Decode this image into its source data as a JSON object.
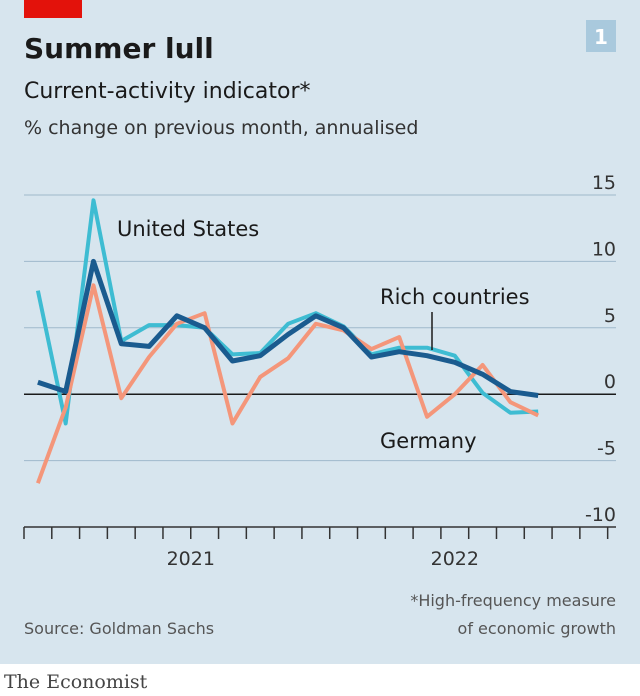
{
  "chart_data": {
    "type": "line",
    "title": "Summer lull",
    "badge": "1",
    "subtitle": "Current-activity indicator*",
    "unit_label": "% change on previous month, annualised",
    "x": [
      0,
      1,
      2,
      3,
      4,
      5,
      6,
      7,
      8,
      9,
      10,
      11,
      12,
      13,
      14,
      15,
      16,
      17,
      18
    ],
    "xlim": [
      -0.5,
      20.8
    ],
    "xticks": [
      -0.5,
      0.5,
      1.5,
      2.5,
      3.5,
      4.5,
      5.5,
      6.5,
      7.5,
      8.5,
      9.5,
      10.5,
      11.5,
      12.5,
      13.5,
      14.5,
      15.5,
      16.5,
      17.5,
      18.5,
      19.5,
      20.5
    ],
    "xlabels": [
      {
        "value": 5.5,
        "label": "2021"
      },
      {
        "value": 15,
        "label": "2022"
      }
    ],
    "ylim": [
      -10,
      15
    ],
    "yticks": [
      -10,
      -5,
      0,
      5,
      10,
      15
    ],
    "grid": true,
    "series": [
      {
        "name": "United States",
        "color": "#3ebcd2",
        "values": [
          7.8,
          -2.2,
          14.6,
          4,
          5.2,
          5.2,
          5,
          3,
          3.1,
          5.3,
          6.1,
          5.1,
          3,
          3.5,
          3.5,
          2.9,
          0.1,
          -1.4,
          -1.3
        ]
      },
      {
        "name": "Germany",
        "color": "#f4967a",
        "values": [
          -6.7,
          -1,
          8.2,
          -0.3,
          2.8,
          5.3,
          6.1,
          -2.2,
          1.3,
          2.7,
          5.3,
          4.8,
          3.4,
          4.3,
          -1.7,
          0,
          2.2,
          -0.6,
          -1.6
        ]
      },
      {
        "name": "Rich countries",
        "color": "#1a5b8f",
        "values": [
          0.9,
          0.2,
          10,
          3.8,
          3.6,
          5.9,
          5,
          2.5,
          2.9,
          4.5,
          5.9,
          5,
          2.8,
          3.2,
          2.9,
          2.4,
          1.5,
          0.2,
          -0.1
        ]
      }
    ],
    "source": "Source: Goldman Sachs",
    "footnote": [
      "*High-frequency measure",
      "of economic growth"
    ],
    "brand": "The Economist"
  }
}
